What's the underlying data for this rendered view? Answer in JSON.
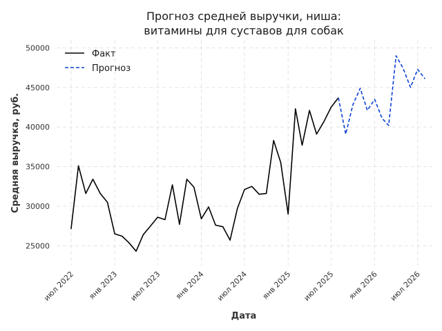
{
  "chart_data": {
    "type": "line",
    "title": [
      "Прогноз средней выручки, ниша:",
      "витамины для суставов для собак"
    ],
    "xlabel": "Дата",
    "ylabel": "Средняя выручка, руб.",
    "xlim": [
      "2022-05-01",
      "2026-09-01"
    ],
    "ylim": [
      22500,
      51000
    ],
    "y_ticks": [
      25000,
      30000,
      35000,
      40000,
      45000,
      50000
    ],
    "x_ticks": [
      {
        "date": "2022-07-01",
        "label": "июл 2022"
      },
      {
        "date": "2023-01-01",
        "label": "янв 2023"
      },
      {
        "date": "2023-07-01",
        "label": "июл 2023"
      },
      {
        "date": "2024-01-01",
        "label": "янв 2024"
      },
      {
        "date": "2024-07-01",
        "label": "июл 2024"
      },
      {
        "date": "2025-01-01",
        "label": "янв 2025"
      },
      {
        "date": "2025-07-01",
        "label": "июл 2025"
      },
      {
        "date": "2026-01-01",
        "label": "янв 2026"
      },
      {
        "date": "2026-07-01",
        "label": "июл 2026"
      }
    ],
    "grid": true,
    "legend_position": "top-left",
    "series": [
      {
        "name": "Факт",
        "color": "#000000",
        "style": "solid",
        "points": [
          [
            "2022-07-01",
            27100
          ],
          [
            "2022-08-01",
            35100
          ],
          [
            "2022-09-01",
            31600
          ],
          [
            "2022-10-01",
            33400
          ],
          [
            "2022-11-01",
            31600
          ],
          [
            "2022-12-01",
            30500
          ],
          [
            "2023-01-01",
            26500
          ],
          [
            "2023-02-01",
            26200
          ],
          [
            "2023-03-01",
            25400
          ],
          [
            "2023-04-01",
            24300
          ],
          [
            "2023-05-01",
            26400
          ],
          [
            "2023-06-01",
            27500
          ],
          [
            "2023-07-01",
            28600
          ],
          [
            "2023-08-01",
            28300
          ],
          [
            "2023-09-01",
            32700
          ],
          [
            "2023-10-01",
            27700
          ],
          [
            "2023-11-01",
            33400
          ],
          [
            "2023-12-01",
            32400
          ],
          [
            "2024-01-01",
            28400
          ],
          [
            "2024-02-01",
            29900
          ],
          [
            "2024-03-01",
            27600
          ],
          [
            "2024-04-01",
            27400
          ],
          [
            "2024-05-01",
            25700
          ],
          [
            "2024-06-01",
            29700
          ],
          [
            "2024-07-01",
            32100
          ],
          [
            "2024-08-01",
            32500
          ],
          [
            "2024-09-01",
            31500
          ],
          [
            "2024-10-01",
            31600
          ],
          [
            "2024-11-01",
            38300
          ],
          [
            "2024-12-01",
            35500
          ],
          [
            "2025-01-01",
            29000
          ],
          [
            "2025-02-01",
            42300
          ],
          [
            "2025-03-01",
            37700
          ],
          [
            "2025-04-01",
            42100
          ],
          [
            "2025-05-01",
            39100
          ],
          [
            "2025-06-01",
            40700
          ],
          [
            "2025-07-01",
            42500
          ],
          [
            "2025-08-01",
            43700
          ]
        ]
      },
      {
        "name": "Прогноз",
        "color": "#0a3fd6",
        "style": "dashed",
        "points": [
          [
            "2025-08-01",
            43700
          ],
          [
            "2025-09-01",
            39100
          ],
          [
            "2025-10-01",
            42800
          ],
          [
            "2025-11-01",
            44900
          ],
          [
            "2025-12-01",
            42100
          ],
          [
            "2026-01-01",
            43500
          ],
          [
            "2026-02-01",
            41100
          ],
          [
            "2026-03-01",
            40200
          ],
          [
            "2026-04-01",
            49000
          ],
          [
            "2026-05-01",
            47400
          ],
          [
            "2026-06-01",
            45000
          ],
          [
            "2026-07-01",
            47300
          ],
          [
            "2026-08-01",
            46100
          ]
        ]
      }
    ]
  }
}
